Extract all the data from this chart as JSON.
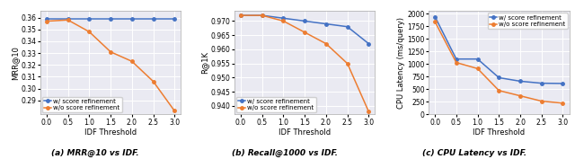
{
  "x": [
    0.0,
    0.5,
    1.0,
    1.5,
    2.0,
    2.5,
    3.0
  ],
  "mrr_with": [
    0.359,
    0.359,
    0.359,
    0.359,
    0.359,
    0.359,
    0.359
  ],
  "mrr_without": [
    0.357,
    0.358,
    0.348,
    0.331,
    0.323,
    0.306,
    0.281
  ],
  "recall_with": [
    0.972,
    0.972,
    0.971,
    0.97,
    0.969,
    0.968,
    0.962
  ],
  "recall_without": [
    0.972,
    0.972,
    0.97,
    0.966,
    0.962,
    0.955,
    0.938
  ],
  "cpu_with": [
    1940,
    1100,
    1100,
    730,
    660,
    620,
    615
  ],
  "cpu_without": [
    1840,
    1030,
    910,
    475,
    370,
    265,
    225
  ],
  "color_with": "#4472c4",
  "color_without": "#ed7d31",
  "xlabel": "IDF Threshold",
  "ylabel_mrr": "MRR@10",
  "ylabel_recall": "R@1K",
  "ylabel_cpu": "CPU Latency (ms/query)",
  "label_with": "w/ score refinement",
  "label_without": "w/o score refinement",
  "caption_a": "(a) MRR@10 vs IDF.",
  "caption_b": "(b) Recall@1000 vs IDF.",
  "caption_c": "(c) CPU Latency vs IDF.",
  "mrr_ylim": [
    0.278,
    0.3655
  ],
  "recall_ylim": [
    0.937,
    0.9735
  ],
  "cpu_ylim": [
    0,
    2050
  ],
  "mrr_yticks": [
    0.29,
    0.3,
    0.31,
    0.32,
    0.33,
    0.34,
    0.35,
    0.36
  ],
  "recall_yticks": [
    0.94,
    0.945,
    0.95,
    0.955,
    0.96,
    0.965,
    0.97
  ],
  "cpu_yticks": [
    0,
    250,
    500,
    750,
    1000,
    1250,
    1500,
    1750,
    2000
  ],
  "xticks": [
    0.0,
    0.5,
    1.0,
    1.5,
    2.0,
    2.5,
    3.0
  ],
  "marker": "o",
  "markersize": 2.5,
  "linewidth": 1.1,
  "fontsize_label": 6.0,
  "fontsize_tick": 5.5,
  "fontsize_legend": 5.0,
  "fontsize_caption": 6.5,
  "background_color": "#eaeaf2"
}
